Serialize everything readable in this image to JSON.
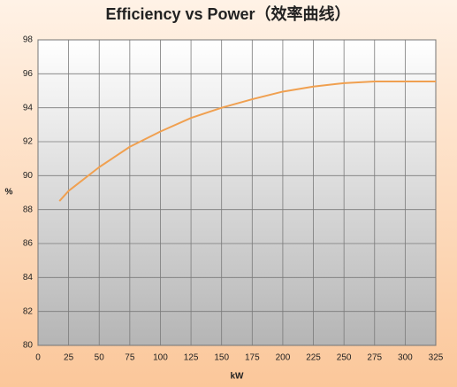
{
  "chart_data": {
    "type": "line",
    "title": "Efficiency vs Power（效率曲线）",
    "x_label": "kW",
    "y_label": "%",
    "x": [
      17.5,
      25,
      50,
      75,
      100,
      125,
      150,
      175,
      200,
      225,
      250,
      275,
      300,
      325
    ],
    "series": [
      {
        "name": "Efficiency",
        "color": "#f0a050",
        "values": [
          88.5,
          89.1,
          90.5,
          91.7,
          92.6,
          93.4,
          94.0,
          94.5,
          94.95,
          95.25,
          95.45,
          95.55,
          95.55,
          95.55
        ]
      }
    ],
    "xlim": [
      0,
      325
    ],
    "xticks": [
      0,
      25,
      50,
      75,
      100,
      125,
      150,
      175,
      200,
      225,
      250,
      275,
      300,
      325
    ],
    "ylim": [
      80,
      98
    ],
    "yticks": [
      80,
      82,
      84,
      86,
      88,
      90,
      92,
      94,
      96,
      98
    ],
    "grid": true
  }
}
